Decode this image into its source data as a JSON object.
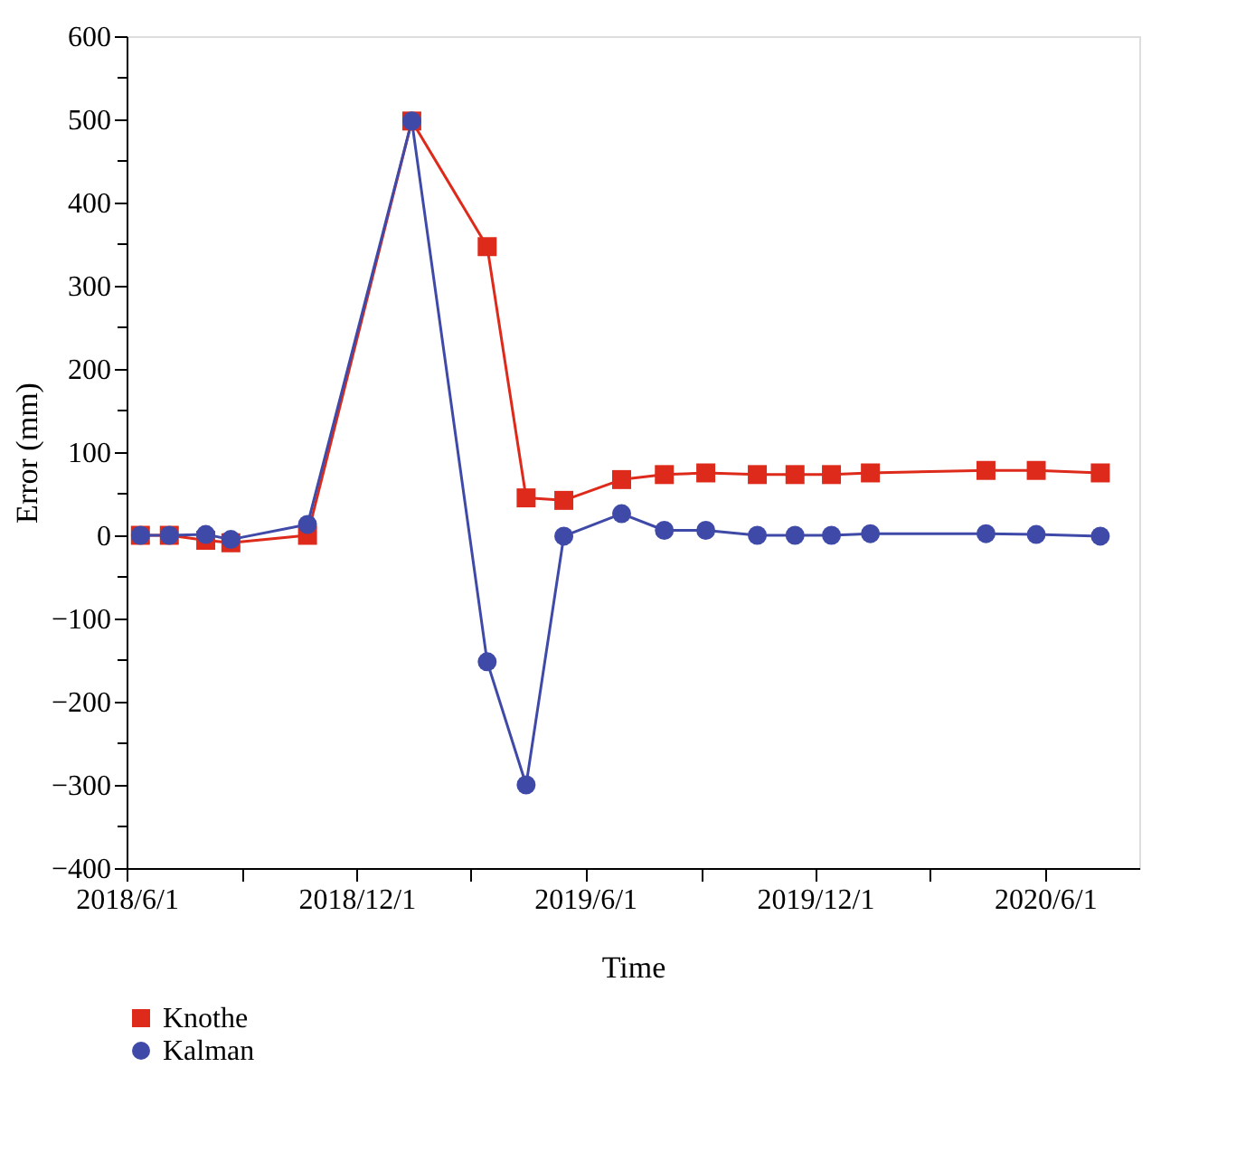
{
  "chart_data": {
    "type": "line",
    "xlabel": "Time",
    "ylabel": "Error (mm)",
    "x": [
      "2018-06-12",
      "2018-07-05",
      "2018-08-03",
      "2018-08-23",
      "2018-10-23",
      "2019-01-14",
      "2019-03-15",
      "2019-04-15",
      "2019-05-15",
      "2019-06-30",
      "2019-08-03",
      "2019-09-05",
      "2019-10-16",
      "2019-11-15",
      "2019-12-14",
      "2020-01-14",
      "2020-04-15",
      "2020-05-25",
      "2020-07-15"
    ],
    "series": [
      {
        "name": "Knothe",
        "color": "#dd2a1b",
        "marker": "square",
        "values": [
          0,
          0,
          -6,
          -9,
          0,
          498,
          347,
          45,
          42,
          67,
          73,
          75,
          73,
          73,
          73,
          75,
          78,
          78,
          75
        ]
      },
      {
        "name": "Kalman",
        "color": "#3f4aa8",
        "marker": "circle",
        "values": [
          0,
          0,
          1,
          -5,
          13,
          498,
          -152,
          -300,
          -1,
          26,
          6,
          6,
          0,
          0,
          0,
          2,
          2,
          1,
          -1
        ]
      }
    ],
    "xlim": [
      "2018-06-01",
      "2020-08-15"
    ],
    "xticks": [
      {
        "value": "2018-06-01",
        "label": "2018/6/1"
      },
      {
        "value": "2018-09-01",
        "label": null
      },
      {
        "value": "2018-12-01",
        "label": "2018/12/1"
      },
      {
        "value": "2019-03-01",
        "label": null
      },
      {
        "value": "2019-06-01",
        "label": "2019/6/1"
      },
      {
        "value": "2019-09-01",
        "label": null
      },
      {
        "value": "2019-12-01",
        "label": "2019/12/1"
      },
      {
        "value": "2020-03-01",
        "label": null
      },
      {
        "value": "2020-06-01",
        "label": "2020/6/1"
      }
    ],
    "ylim": [
      -400,
      600
    ],
    "yticks": [
      -400,
      {
        "value": -350,
        "label": null
      },
      -300,
      {
        "value": -250,
        "label": null
      },
      -200,
      {
        "value": -150,
        "label": null
      },
      -100,
      {
        "value": -50,
        "label": null
      },
      0,
      {
        "value": 50,
        "label": null
      },
      100,
      {
        "value": 150,
        "label": null
      },
      200,
      {
        "value": 250,
        "label": null
      },
      300,
      {
        "value": 350,
        "label": null
      },
      400,
      {
        "value": 450,
        "label": null
      },
      500,
      {
        "value": 550,
        "label": null
      },
      600
    ],
    "grid": false,
    "legend": "bottom left",
    "line_style": "solid"
  }
}
